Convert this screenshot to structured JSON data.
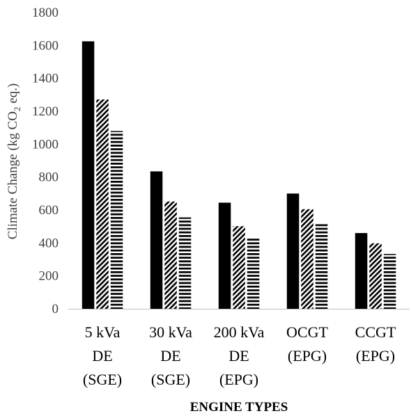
{
  "chart_data": {
    "type": "bar",
    "ylabel": "Climate Change (kg CO2 eq.)",
    "xlabel": "ENGINE TYPES",
    "ylim": [
      0,
      1800
    ],
    "yticks": [
      "0",
      "200",
      "400",
      "600",
      "800",
      "1000",
      "1200",
      "1400",
      "1600",
      "1800"
    ],
    "categories": [
      [
        "5 kVa",
        "DE",
        "(SGE)"
      ],
      [
        "30 kVa",
        "DE",
        "(SGE)"
      ],
      [
        "200 kVa",
        "DE",
        "(EPG)"
      ],
      [
        "OCGT",
        "(EPG)"
      ],
      [
        "CCGT",
        "(EPG)"
      ]
    ],
    "series": [
      {
        "fill": "solid-black",
        "values": [
          1625,
          835,
          645,
          700,
          460
        ]
      },
      {
        "fill": "diagonal-stripes",
        "values": [
          1272,
          652,
          502,
          605,
          398
        ]
      },
      {
        "fill": "horizontal-stripes",
        "values": [
          1080,
          555,
          428,
          515,
          333
        ]
      }
    ],
    "grid": false,
    "legend": "none"
  }
}
